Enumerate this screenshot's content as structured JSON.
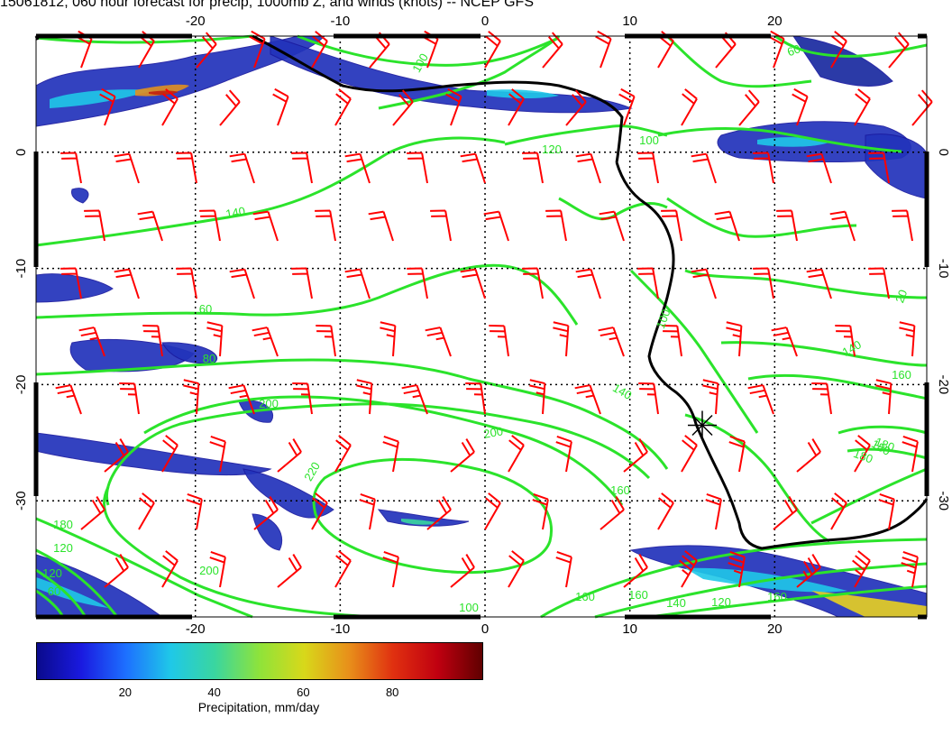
{
  "title": "15061812, 060 hour forecast for precip, 1000mb Z, and winds (knots) -- NCEP GFS",
  "map": {
    "lon_range": [
      -31,
      30.5
    ],
    "lat_range": [
      -40,
      10
    ],
    "lon_ticks": [
      "-20",
      "-10",
      "0",
      "10",
      "20"
    ],
    "lon_tick_values": [
      -20,
      -10,
      0,
      10,
      20
    ],
    "lat_ticks": [
      "0",
      "-10",
      "-20",
      "-30"
    ],
    "lat_tick_values": [
      0,
      -10,
      -20,
      -30
    ],
    "contour_labels": [
      "100",
      "60",
      "100",
      "120",
      "140",
      "60",
      "80",
      "200",
      "200",
      "220",
      "140",
      "180",
      "120",
      "60",
      "160",
      "100",
      "20",
      "140",
      "160",
      "180",
      "180",
      "160",
      "200",
      "180",
      "160",
      "140",
      "120",
      "160",
      "120",
      "100"
    ],
    "station_marker_lonlat": [
      15,
      -23.5
    ],
    "colors": {
      "contour": "#2be32b",
      "contour_label": "#2be32b",
      "wind_barb": "#ff0000",
      "coastline": "#000000",
      "grid": "#000000"
    }
  },
  "colorbar": {
    "ticks": [
      "20",
      "40",
      "60",
      "80"
    ],
    "tick_values": [
      20,
      40,
      60,
      80
    ],
    "range": [
      0,
      100
    ],
    "label": "Precipitation, mm/day",
    "colors": [
      "#0a0a8c",
      "#1a1ae0",
      "#1d70ff",
      "#1fc8e8",
      "#3ad69f",
      "#8fe33a",
      "#d8d81a",
      "#e8901a",
      "#e03010",
      "#c00010",
      "#600000"
    ]
  }
}
